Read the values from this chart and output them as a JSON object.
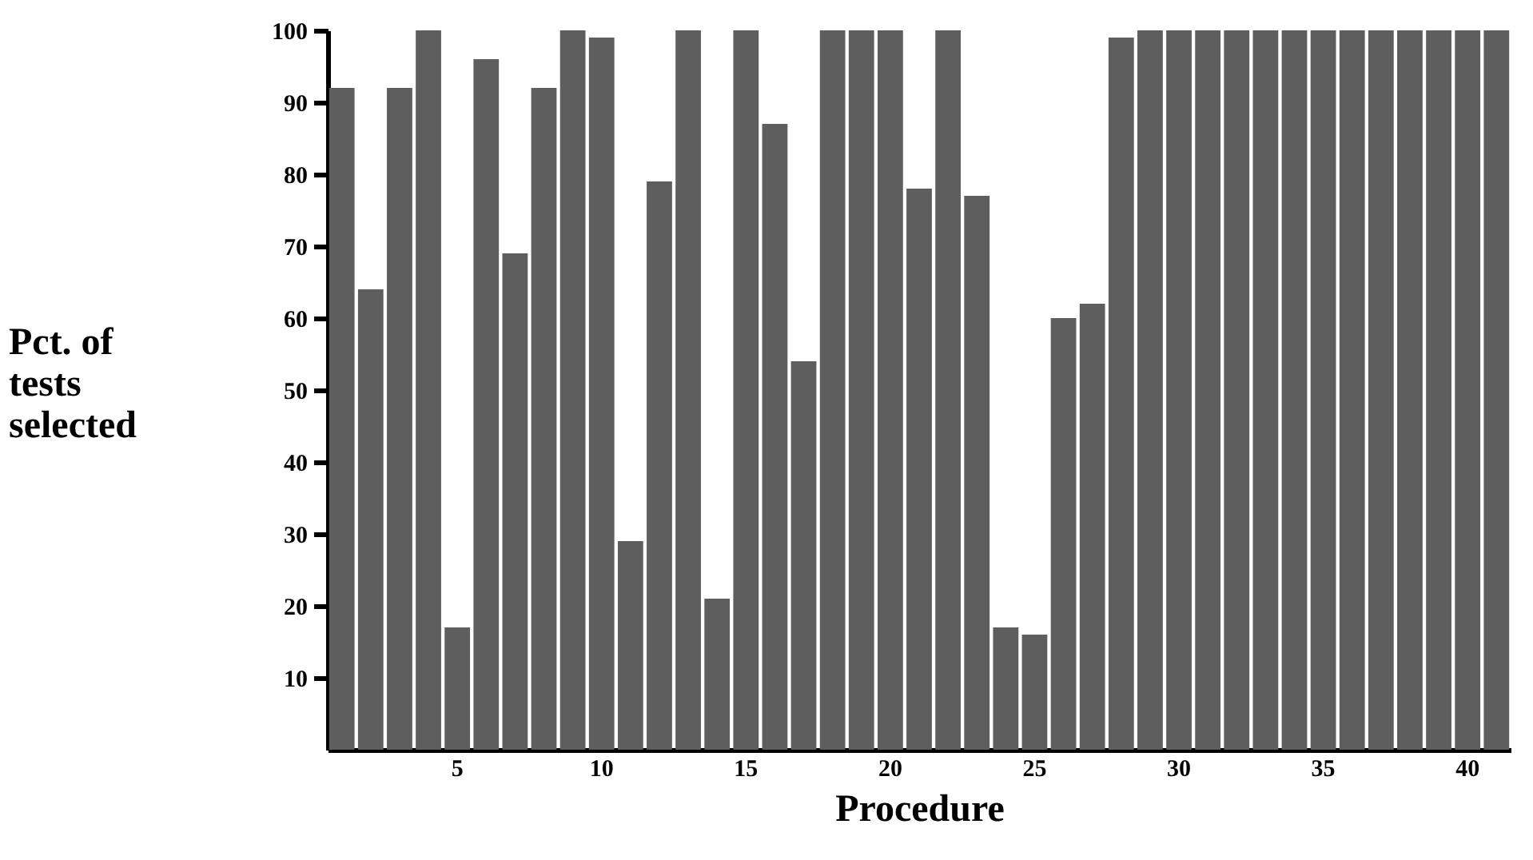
{
  "chart_data": {
    "type": "bar",
    "xlabel": "Procedure",
    "ylabel": "Pct. of tests selected",
    "categories": [
      null,
      null,
      null,
      null,
      "5",
      null,
      null,
      null,
      null,
      "10",
      null,
      null,
      null,
      null,
      "15",
      null,
      null,
      null,
      null,
      "20",
      null,
      null,
      null,
      null,
      "25",
      null,
      null,
      null,
      null,
      "30",
      null,
      null,
      null,
      null,
      "35",
      null,
      null,
      null,
      null,
      "40",
      null
    ],
    "values": [
      92,
      64,
      92,
      100,
      17,
      96,
      69,
      92,
      100,
      99,
      29,
      79,
      100,
      21,
      100,
      87,
      54,
      100,
      100,
      100,
      78,
      100,
      77,
      17,
      16,
      60,
      62,
      99,
      100,
      100,
      100,
      100,
      100,
      100,
      100,
      100,
      100,
      100,
      100,
      100,
      100
    ],
    "color": "#5e5e5e",
    "ylim": [
      0,
      100
    ],
    "yticks": [
      10,
      20,
      30,
      40,
      50,
      60,
      70,
      80,
      90,
      100
    ],
    "grid": false
  }
}
